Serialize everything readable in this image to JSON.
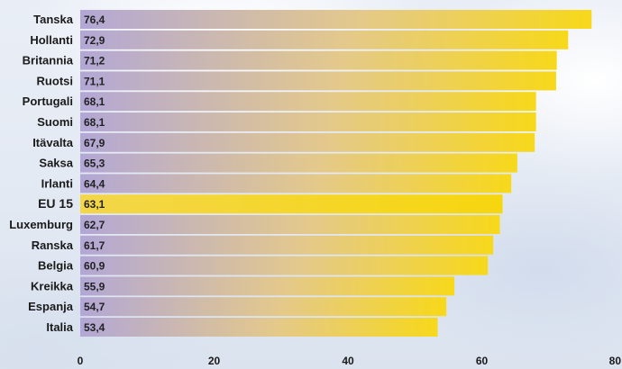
{
  "chart_data": {
    "type": "bar",
    "orientation": "horizontal",
    "title": "",
    "xlabel": "",
    "ylabel": "",
    "categories": [
      "Tanska",
      "Hollanti",
      "Britannia",
      "Ruotsi",
      "Portugali",
      "Suomi",
      "Itävalta",
      "Saksa",
      "Irlanti",
      "EU 15",
      "Luxemburg",
      "Ranska",
      "Belgia",
      "Kreikka",
      "Espanja",
      "Italia"
    ],
    "values": [
      76.4,
      72.9,
      71.2,
      71.1,
      68.1,
      68.1,
      67.9,
      65.3,
      64.4,
      63.1,
      62.7,
      61.7,
      60.9,
      55.9,
      54.7,
      53.4
    ],
    "value_labels": [
      "76,4",
      "72,9",
      "71,2",
      "71,1",
      "68,1",
      "68,1",
      "67,9",
      "65,3",
      "64,4",
      "63,1",
      "62,7",
      "61,7",
      "60,9",
      "55,9",
      "54,7",
      "53,4"
    ],
    "highlight_category": "EU 15",
    "xlim": [
      0,
      80
    ],
    "x_ticks": [
      0,
      20,
      40,
      60,
      80
    ],
    "x_tick_labels": [
      "0",
      "20",
      "40",
      "60",
      "80"
    ],
    "grid": false,
    "legend": "none",
    "colors": {
      "bar_start": "#b2a7d6",
      "bar_mid": "#e4c98a",
      "bar_end": "#f7d81a",
      "highlight_start": "#f3d64a",
      "highlight_end": "#f6d60e",
      "text": "#1a1a1a"
    }
  }
}
